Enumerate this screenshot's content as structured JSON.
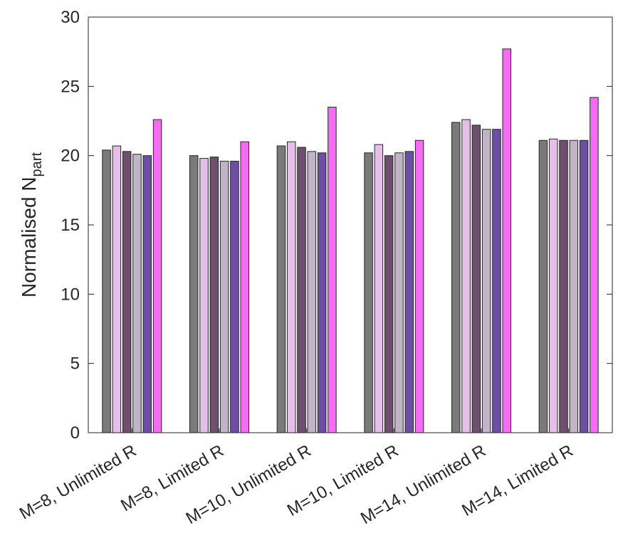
{
  "chart_data": {
    "type": "bar",
    "title": "",
    "xlabel": "",
    "ylabel": "Normalised N",
    "ylabel_subscript": "part",
    "ylim": [
      0,
      30
    ],
    "yticks": [
      0,
      5,
      10,
      15,
      20,
      25,
      30
    ],
    "grid": false,
    "categories": [
      "M=8, Unlimited R",
      "M=8, Limited R",
      "M=10, Unlimited R",
      "M=10, Limited R",
      "M=14, Unlimited R",
      "M=14, Limited R"
    ],
    "series": [
      {
        "color": "#7a7a7a",
        "values": [
          20.4,
          20.0,
          20.7,
          20.2,
          22.4,
          21.1
        ]
      },
      {
        "color": "#e6bfe8",
        "values": [
          20.7,
          19.8,
          21.0,
          20.8,
          22.6,
          21.2
        ]
      },
      {
        "color": "#6e4f6e",
        "values": [
          20.3,
          19.9,
          20.6,
          20.0,
          22.2,
          21.1
        ]
      },
      {
        "color": "#c1b4c6",
        "values": [
          20.1,
          19.6,
          20.3,
          20.2,
          21.9,
          21.1
        ]
      },
      {
        "color": "#6d4ea4",
        "values": [
          20.0,
          19.6,
          20.2,
          20.3,
          21.9,
          21.1
        ]
      },
      {
        "color": "#f46cf2",
        "values": [
          22.6,
          21.0,
          23.5,
          21.1,
          27.7,
          24.2
        ]
      }
    ]
  }
}
